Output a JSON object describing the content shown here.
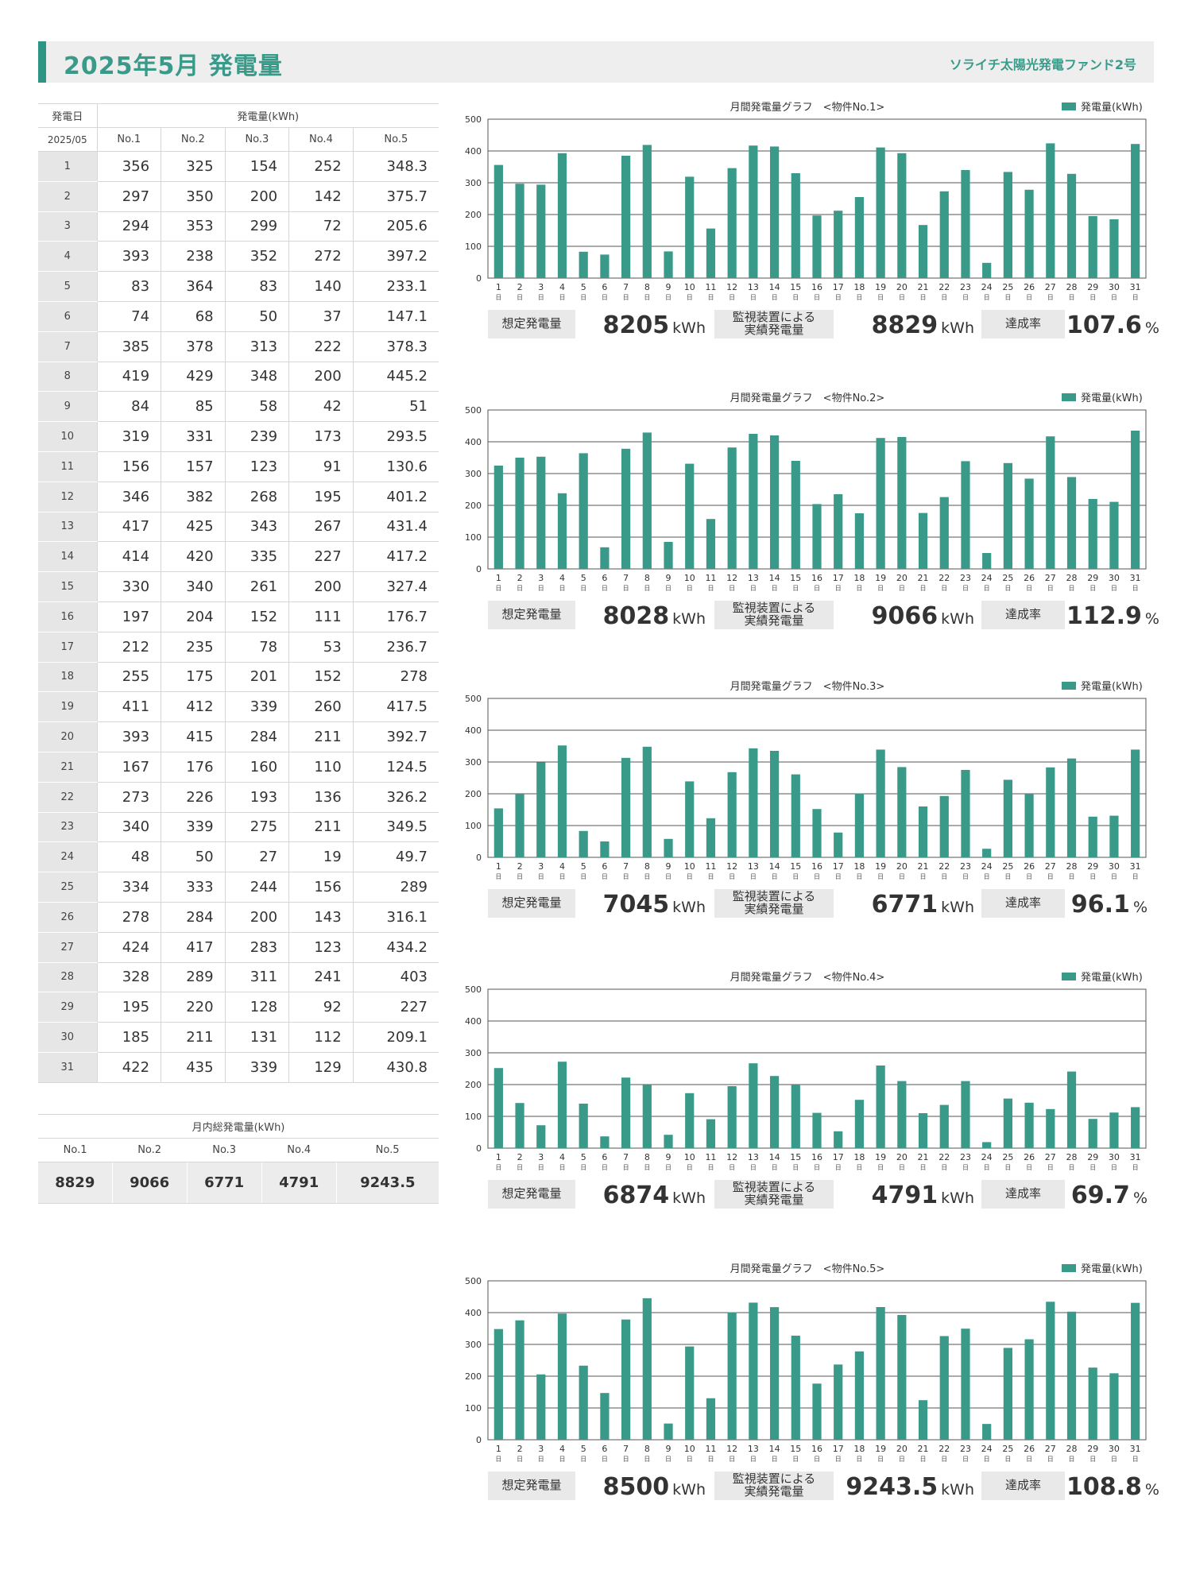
{
  "header": {
    "title": "2025年5月 発電量",
    "fund_name": "ソライチ太陽光発電ファンド2号"
  },
  "colors": {
    "accent": "#2e9483",
    "bar": "#3a9a8a"
  },
  "table": {
    "date_header": "発電日",
    "gen_header": "発電量(kWh)",
    "month_label": "2025/05",
    "columns": [
      "No.1",
      "No.2",
      "No.3",
      "No.4",
      "No.5"
    ],
    "rows": [
      [
        "1",
        "356",
        "325",
        "154",
        "252",
        "348.3"
      ],
      [
        "2",
        "297",
        "350",
        "200",
        "142",
        "375.7"
      ],
      [
        "3",
        "294",
        "353",
        "299",
        "72",
        "205.6"
      ],
      [
        "4",
        "393",
        "238",
        "352",
        "272",
        "397.2"
      ],
      [
        "5",
        "83",
        "364",
        "83",
        "140",
        "233.1"
      ],
      [
        "6",
        "74",
        "68",
        "50",
        "37",
        "147.1"
      ],
      [
        "7",
        "385",
        "378",
        "313",
        "222",
        "378.3"
      ],
      [
        "8",
        "419",
        "429",
        "348",
        "200",
        "445.2"
      ],
      [
        "9",
        "84",
        "85",
        "58",
        "42",
        "51"
      ],
      [
        "10",
        "319",
        "331",
        "239",
        "173",
        "293.5"
      ],
      [
        "11",
        "156",
        "157",
        "123",
        "91",
        "130.6"
      ],
      [
        "12",
        "346",
        "382",
        "268",
        "195",
        "401.2"
      ],
      [
        "13",
        "417",
        "425",
        "343",
        "267",
        "431.4"
      ],
      [
        "14",
        "414",
        "420",
        "335",
        "227",
        "417.2"
      ],
      [
        "15",
        "330",
        "340",
        "261",
        "200",
        "327.4"
      ],
      [
        "16",
        "197",
        "204",
        "152",
        "111",
        "176.7"
      ],
      [
        "17",
        "212",
        "235",
        "78",
        "53",
        "236.7"
      ],
      [
        "18",
        "255",
        "175",
        "201",
        "152",
        "278"
      ],
      [
        "19",
        "411",
        "412",
        "339",
        "260",
        "417.5"
      ],
      [
        "20",
        "393",
        "415",
        "284",
        "211",
        "392.7"
      ],
      [
        "21",
        "167",
        "176",
        "160",
        "110",
        "124.5"
      ],
      [
        "22",
        "273",
        "226",
        "193",
        "136",
        "326.2"
      ],
      [
        "23",
        "340",
        "339",
        "275",
        "211",
        "349.5"
      ],
      [
        "24",
        "48",
        "50",
        "27",
        "19",
        "49.7"
      ],
      [
        "25",
        "334",
        "333",
        "244",
        "156",
        "289"
      ],
      [
        "26",
        "278",
        "284",
        "200",
        "143",
        "316.1"
      ],
      [
        "27",
        "424",
        "417",
        "283",
        "123",
        "434.2"
      ],
      [
        "28",
        "328",
        "289",
        "311",
        "241",
        "403"
      ],
      [
        "29",
        "195",
        "220",
        "128",
        "92",
        "227"
      ],
      [
        "30",
        "185",
        "211",
        "131",
        "112",
        "209.1"
      ],
      [
        "31",
        "422",
        "435",
        "339",
        "129",
        "430.8"
      ]
    ]
  },
  "totals": {
    "title": "月内総発電量(kWh)",
    "columns": [
      "No.1",
      "No.2",
      "No.3",
      "No.4",
      "No.5"
    ],
    "values": [
      "8829",
      "9066",
      "6771",
      "4791",
      "9243.5"
    ]
  },
  "summary_labels": {
    "expected": "想定発電量",
    "actual_line1": "監視装置による",
    "actual_line2": "実績発電量",
    "rate": "達成率",
    "unit": "kWh",
    "pct": "%"
  },
  "chart_data": [
    {
      "type": "bar",
      "title": "月間発電量グラフ　<物件No.1>",
      "series": [
        {
          "name": "発電量(kWh)",
          "values": [
            356,
            297,
            294,
            393,
            83,
            74,
            385,
            419,
            84,
            319,
            156,
            346,
            417,
            414,
            330,
            197,
            212,
            255,
            411,
            393,
            167,
            273,
            340,
            48,
            334,
            278,
            424,
            328,
            195,
            185,
            422
          ]
        }
      ],
      "categories": [
        "1",
        "2",
        "3",
        "4",
        "5",
        "6",
        "7",
        "8",
        "9",
        "10",
        "11",
        "12",
        "13",
        "14",
        "15",
        "16",
        "17",
        "18",
        "19",
        "20",
        "21",
        "22",
        "23",
        "24",
        "25",
        "26",
        "27",
        "28",
        "29",
        "30",
        "31"
      ],
      "category_suffix": "日",
      "yticks": [
        "0",
        "100",
        "200",
        "300",
        "400",
        "500"
      ],
      "ylim": [
        0,
        500
      ],
      "legend": "top-right",
      "grid": true,
      "expected": "8205",
      "actual": "8829",
      "rate": "107.6"
    },
    {
      "type": "bar",
      "title": "月間発電量グラフ　<物件No.2>",
      "series": [
        {
          "name": "発電量(kWh)",
          "values": [
            325,
            350,
            353,
            238,
            364,
            68,
            378,
            429,
            85,
            331,
            157,
            382,
            425,
            420,
            340,
            204,
            235,
            175,
            412,
            415,
            176,
            226,
            339,
            50,
            333,
            284,
            417,
            289,
            220,
            211,
            435
          ]
        }
      ],
      "categories": [
        "1",
        "2",
        "3",
        "4",
        "5",
        "6",
        "7",
        "8",
        "9",
        "10",
        "11",
        "12",
        "13",
        "14",
        "15",
        "16",
        "17",
        "18",
        "19",
        "20",
        "21",
        "22",
        "23",
        "24",
        "25",
        "26",
        "27",
        "28",
        "29",
        "30",
        "31"
      ],
      "category_suffix": "日",
      "yticks": [
        "0",
        "100",
        "200",
        "300",
        "400",
        "500"
      ],
      "ylim": [
        0,
        500
      ],
      "legend": "top-right",
      "grid": true,
      "expected": "8028",
      "actual": "9066",
      "rate": "112.9"
    },
    {
      "type": "bar",
      "title": "月間発電量グラフ　<物件No.3>",
      "series": [
        {
          "name": "発電量(kWh)",
          "values": [
            154,
            200,
            299,
            352,
            83,
            50,
            313,
            348,
            58,
            239,
            123,
            268,
            343,
            335,
            261,
            152,
            78,
            201,
            339,
            284,
            160,
            193,
            275,
            27,
            244,
            200,
            283,
            311,
            128,
            131,
            339
          ]
        }
      ],
      "categories": [
        "1",
        "2",
        "3",
        "4",
        "5",
        "6",
        "7",
        "8",
        "9",
        "10",
        "11",
        "12",
        "13",
        "14",
        "15",
        "16",
        "17",
        "18",
        "19",
        "20",
        "21",
        "22",
        "23",
        "24",
        "25",
        "26",
        "27",
        "28",
        "29",
        "30",
        "31"
      ],
      "category_suffix": "日",
      "yticks": [
        "0",
        "100",
        "200",
        "300",
        "400",
        "500"
      ],
      "ylim": [
        0,
        500
      ],
      "legend": "top-right",
      "grid": true,
      "expected": "7045",
      "actual": "6771",
      "rate": "96.1"
    },
    {
      "type": "bar",
      "title": "月間発電量グラフ　<物件No.4>",
      "series": [
        {
          "name": "発電量(kWh)",
          "values": [
            252,
            142,
            72,
            272,
            140,
            37,
            222,
            200,
            42,
            173,
            91,
            195,
            267,
            227,
            200,
            111,
            53,
            152,
            260,
            211,
            110,
            136,
            211,
            19,
            156,
            143,
            123,
            241,
            92,
            112,
            129
          ]
        }
      ],
      "categories": [
        "1",
        "2",
        "3",
        "4",
        "5",
        "6",
        "7",
        "8",
        "9",
        "10",
        "11",
        "12",
        "13",
        "14",
        "15",
        "16",
        "17",
        "18",
        "19",
        "20",
        "21",
        "22",
        "23",
        "24",
        "25",
        "26",
        "27",
        "28",
        "29",
        "30",
        "31"
      ],
      "category_suffix": "日",
      "yticks": [
        "0",
        "100",
        "200",
        "300",
        "400",
        "500"
      ],
      "ylim": [
        0,
        500
      ],
      "legend": "top-right",
      "grid": true,
      "expected": "6874",
      "actual": "4791",
      "rate": "69.7"
    },
    {
      "type": "bar",
      "title": "月間発電量グラフ　<物件No.5>",
      "series": [
        {
          "name": "発電量(kWh)",
          "values": [
            348.3,
            375.7,
            205.6,
            397.2,
            233.1,
            147.1,
            378.3,
            445.2,
            51,
            293.5,
            130.6,
            401.2,
            431.4,
            417.2,
            327.4,
            176.7,
            236.7,
            278,
            417.5,
            392.7,
            124.5,
            326.2,
            349.5,
            49.7,
            289,
            316.1,
            434.2,
            403,
            227,
            209.1,
            430.8
          ]
        }
      ],
      "categories": [
        "1",
        "2",
        "3",
        "4",
        "5",
        "6",
        "7",
        "8",
        "9",
        "10",
        "11",
        "12",
        "13",
        "14",
        "15",
        "16",
        "17",
        "18",
        "19",
        "20",
        "21",
        "22",
        "23",
        "24",
        "25",
        "26",
        "27",
        "28",
        "29",
        "30",
        "31"
      ],
      "category_suffix": "日",
      "yticks": [
        "0",
        "100",
        "200",
        "300",
        "400",
        "500"
      ],
      "ylim": [
        0,
        500
      ],
      "legend": "top-right",
      "grid": true,
      "expected": "8500",
      "actual": "9243.5",
      "rate": "108.8"
    }
  ]
}
